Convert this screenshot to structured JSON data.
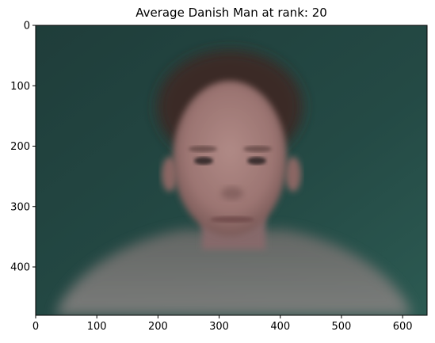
{
  "title": "Average Danish Man at rank: 20",
  "image": {
    "description_icon": "blurred-face-photo",
    "background_color": "#254c47",
    "x_range": [
      0,
      640
    ],
    "y_range": [
      0,
      480
    ]
  },
  "axes": {
    "x_ticks": [
      {
        "value": 0,
        "label": "0"
      },
      {
        "value": 100,
        "label": "100"
      },
      {
        "value": 200,
        "label": "200"
      },
      {
        "value": 300,
        "label": "300"
      },
      {
        "value": 400,
        "label": "400"
      },
      {
        "value": 500,
        "label": "500"
      },
      {
        "value": 600,
        "label": "600"
      }
    ],
    "y_ticks": [
      {
        "value": 0,
        "label": "0"
      },
      {
        "value": 100,
        "label": "100"
      },
      {
        "value": 200,
        "label": "200"
      },
      {
        "value": 300,
        "label": "300"
      },
      {
        "value": 400,
        "label": "400"
      }
    ]
  }
}
